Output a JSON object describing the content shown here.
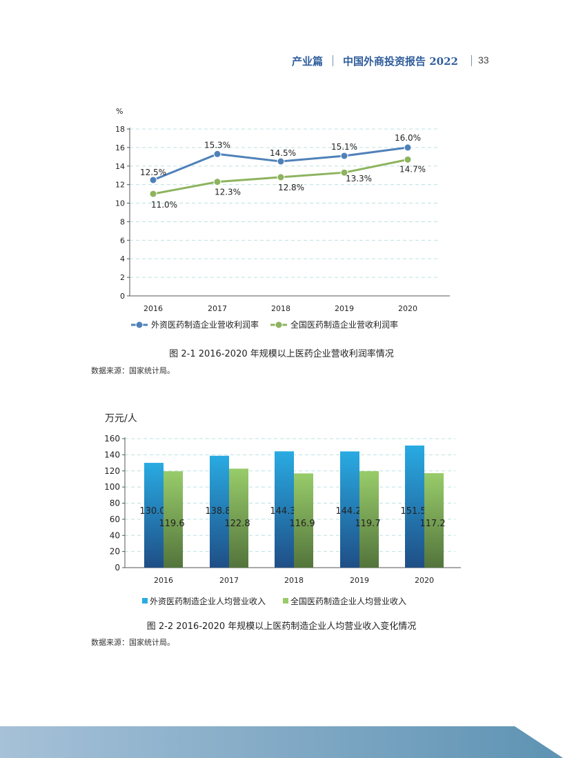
{
  "header": {
    "section": "产业篇",
    "title": "中国外商投资报告 2022",
    "page_number": "33"
  },
  "figure1": {
    "caption": "图 2-1 2016-2020 年规模以上医药企业营收利润率情况",
    "source": "数据来源：国家统计局。"
  },
  "figure2": {
    "caption": "图 2-2 2016-2020 年规模以上医药制造企业人均营业收入变化情况",
    "source": "数据来源：国家统计局。"
  },
  "colors": {
    "series_blue": "#4f81b9",
    "series_green": "#8db35e",
    "bar_blue_top": "#29abe2",
    "bar_blue_bottom": "#1f4e86",
    "bar_green_top": "#98cc6a",
    "bar_green_bottom": "#53743c",
    "header_blue": "#2f5d9c",
    "grid": "#bde0e0"
  },
  "chart_data": [
    {
      "type": "line",
      "ylabel": "%",
      "xlabel": "",
      "categories": [
        "2016",
        "2017",
        "2018",
        "2019",
        "2020"
      ],
      "yticks": [
        "0",
        "2",
        "4",
        "6",
        "8",
        "10",
        "12",
        "14",
        "16",
        "18"
      ],
      "ylim": [
        0,
        18
      ],
      "grid": true,
      "legend_position": "bottom",
      "series": [
        {
          "name": "外资医药制造企业营收利润率",
          "values": [
            12.5,
            15.3,
            14.5,
            15.1,
            16.0
          ],
          "labels": [
            "12.5%",
            "15.3%",
            "14.5%",
            "15.1%",
            "16.0%"
          ]
        },
        {
          "name": "全国医药制造企业营收利润率",
          "values": [
            11.0,
            12.3,
            12.8,
            13.3,
            14.7
          ],
          "labels": [
            "11.0%",
            "12.3%",
            "12.8%",
            "13.3%",
            "14.7%"
          ]
        }
      ]
    },
    {
      "type": "bar",
      "ylabel": "万元/人",
      "xlabel": "",
      "categories": [
        "2016",
        "2017",
        "2018",
        "2019",
        "2020"
      ],
      "yticks": [
        "0",
        "20",
        "40",
        "60",
        "80",
        "100",
        "120",
        "140",
        "160"
      ],
      "ylim": [
        0,
        160
      ],
      "grid": true,
      "legend_position": "bottom",
      "series": [
        {
          "name": "外资医药制造企业人均营业收入",
          "values": [
            130.0,
            138.8,
            144.3,
            144.2,
            151.5
          ],
          "labels": [
            "130.0",
            "138.8",
            "144.3",
            "144.2",
            "151.5"
          ]
        },
        {
          "name": "全国医药制造企业人均营业收入",
          "values": [
            119.6,
            122.8,
            116.9,
            119.7,
            117.2
          ],
          "labels": [
            "119.6",
            "122.8",
            "116.9",
            "119.7",
            "117.2"
          ]
        }
      ]
    }
  ]
}
